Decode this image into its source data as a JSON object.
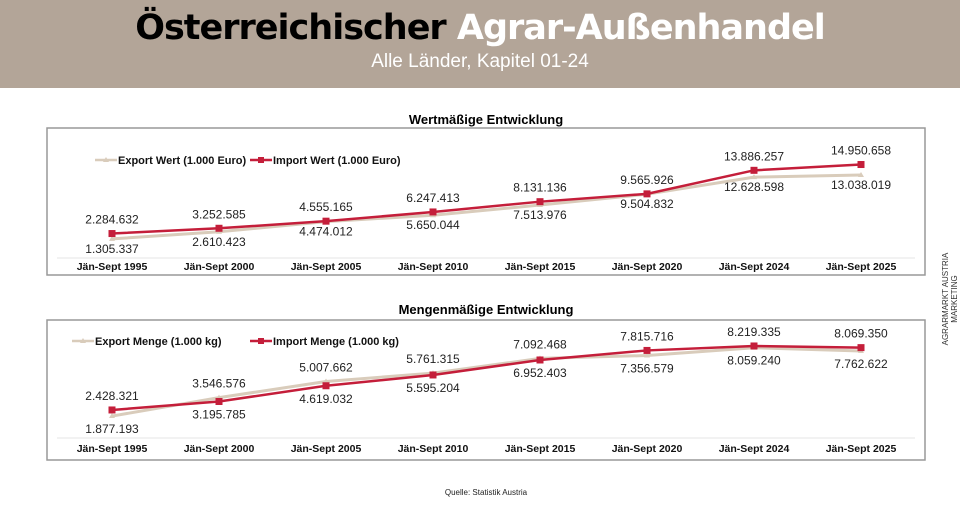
{
  "header": {
    "title_part1": "Österreichischer",
    "title_part2": "Agrar-Außenhandel",
    "subtitle": "Alle Länder, Kapitel 01-24"
  },
  "side_text": "AGRARMARKT AUSTRIA MARKETING",
  "source": "Quelle: Statistik Austria",
  "colors": {
    "export": "#d9ccbb",
    "import": "#c41e3a",
    "header_bg": "#b3a598"
  },
  "chart_data": [
    {
      "type": "line",
      "title": "Wertmäßige Entwicklung",
      "legend": "top-left",
      "categories": [
        "Jän-Sept 1995",
        "Jän-Sept 2000",
        "Jän-Sept 2005",
        "Jän-Sept 2010",
        "Jän-Sept 2015",
        "Jän-Sept 2020",
        "Jän-Sept 2024",
        "Jän-Sept 2025"
      ],
      "series": [
        {
          "name": "Export Wert (1.000 Euro)",
          "values": [
            1305337,
            2610423,
            4474012,
            5650044,
            7513976,
            9504832,
            12628598,
            13038019
          ],
          "labels": [
            "1.305.337",
            "2.610.423",
            "4.474.012",
            "5.650.044",
            "7.513.976",
            "9.504.832",
            "12.628.598",
            "13.038.019"
          ]
        },
        {
          "name": "Import Wert (1.000 Euro)",
          "values": [
            2284632,
            3252585,
            4555165,
            6247413,
            8131136,
            9565926,
            13886257,
            14950658
          ],
          "labels": [
            "2.284.632",
            "3.252.585",
            "4.555.165",
            "6.247.413",
            "8.131.136",
            "9.565.926",
            "13.886.257",
            "14.950.658"
          ]
        }
      ]
    },
    {
      "type": "line",
      "title": "Mengenmäßige Entwicklung",
      "legend": "top-left",
      "categories": [
        "Jän-Sept 1995",
        "Jän-Sept 2000",
        "Jän-Sept 2005",
        "Jän-Sept 2010",
        "Jän-Sept 2015",
        "Jän-Sept 2020",
        "Jän-Sept 2024",
        "Jän-Sept 2025"
      ],
      "series": [
        {
          "name": "Export Menge (1.000 kg)",
          "values": [
            1877193,
            3546576,
            5007662,
            5761315,
            7092468,
            7356579,
            8059240,
            7762622
          ],
          "labels": [
            "1.877.193",
            "3.546.576",
            "5.007.662",
            "5.761.315",
            "7.092.468",
            "7.356.579",
            "8.059.240",
            "7.762.622"
          ]
        },
        {
          "name": "Import Menge (1.000 kg)",
          "values": [
            2428321,
            3195785,
            4619032,
            5595204,
            6952403,
            7815716,
            8219335,
            8069350
          ],
          "labels": [
            "2.428.321",
            "3.195.785",
            "4.619.032",
            "5.595.204",
            "6.952.403",
            "7.815.716",
            "8.219.335",
            "8.069.350"
          ]
        }
      ]
    }
  ]
}
